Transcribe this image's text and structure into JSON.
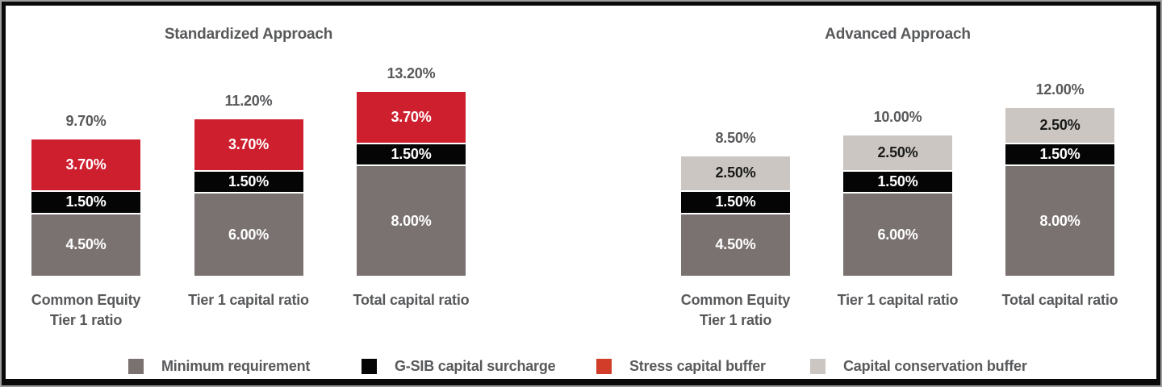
{
  "chart_data": [
    {
      "type": "bar",
      "stacked": true,
      "title": "Standardized Approach",
      "categories": [
        "Common Equity\nTier 1 ratio",
        "Tier 1 capital ratio",
        "Total capital ratio"
      ],
      "series": [
        {
          "name": "Minimum requirement",
          "color": "#7a7270",
          "label_color": "#ffffff",
          "values": [
            4.5,
            6.0,
            8.0
          ],
          "labels": [
            "4.50%",
            "6.00%",
            "8.00%"
          ]
        },
        {
          "name": "G-SIB capital surcharge",
          "color": "#050505",
          "label_color": "#ffffff",
          "values": [
            1.5,
            1.5,
            1.5
          ],
          "labels": [
            "1.50%",
            "1.50%",
            "1.50%"
          ]
        },
        {
          "name": "Stress capital buffer",
          "color": "#ce1f2f",
          "label_color": "#ffffff",
          "values": [
            3.7,
            3.7,
            3.7
          ],
          "labels": [
            "3.70%",
            "3.70%",
            "3.70%"
          ]
        }
      ],
      "totals": [
        9.7,
        11.2,
        13.2
      ],
      "totals_labels": [
        "9.70%",
        "11.20%",
        "13.20%"
      ],
      "grid": false,
      "value_labels": "inside-segments",
      "legend_position": "bottom"
    },
    {
      "type": "bar",
      "stacked": true,
      "title": "Advanced Approach",
      "categories": [
        "Common Equity\nTier 1 ratio",
        "Tier 1 capital ratio",
        "Total capital ratio"
      ],
      "series": [
        {
          "name": "Minimum requirement",
          "color": "#7a7270",
          "label_color": "#ffffff",
          "values": [
            4.5,
            6.0,
            8.0
          ],
          "labels": [
            "4.50%",
            "6.00%",
            "8.00%"
          ]
        },
        {
          "name": "G-SIB capital surcharge",
          "color": "#050505",
          "label_color": "#ffffff",
          "values": [
            1.5,
            1.5,
            1.5
          ],
          "labels": [
            "1.50%",
            "1.50%",
            "1.50%"
          ]
        },
        {
          "name": "Capital conservation buffer",
          "color": "#cbc6c2",
          "label_color": "#1a1a1a",
          "values": [
            2.5,
            2.5,
            2.5
          ],
          "labels": [
            "2.50%",
            "2.50%",
            "2.50%"
          ]
        }
      ],
      "totals": [
        8.5,
        10.0,
        12.0
      ],
      "totals_labels": [
        "8.50%",
        "10.00%",
        "12.00%"
      ],
      "grid": false,
      "value_labels": "inside-segments",
      "legend_position": "bottom"
    }
  ],
  "legend": {
    "items": [
      {
        "label": "Minimum requirement",
        "color": "#7a7270"
      },
      {
        "label": "G-SIB capital surcharge",
        "color": "#050505"
      },
      {
        "label": "Stress capital buffer",
        "color": "#d13d28"
      },
      {
        "label": "Capital conservation buffer",
        "color": "#cbc6c2"
      }
    ]
  }
}
